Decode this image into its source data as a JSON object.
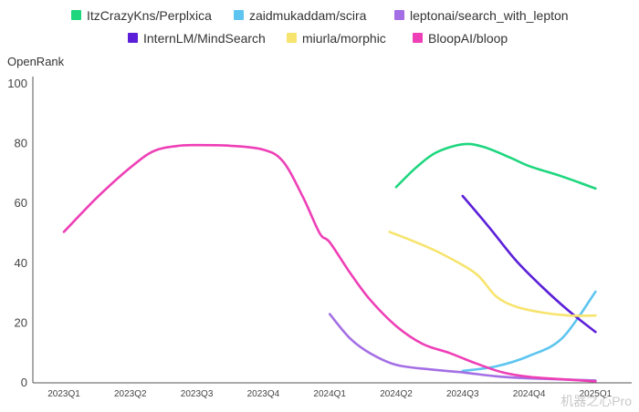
{
  "chart_data": {
    "type": "line",
    "ylabel": "OpenRank",
    "ylim": [
      0,
      100
    ],
    "yticks": [
      0,
      20,
      40,
      60,
      80,
      100
    ],
    "categories": [
      "2023Q1",
      "2023Q2",
      "2023Q3",
      "2023Q4",
      "2024Q1",
      "2024Q2",
      "2024Q3",
      "2024Q4",
      "2025Q1"
    ],
    "legend_position": "top",
    "grid": false,
    "series": [
      {
        "name": "ItzCrazyKns/Perplxica",
        "color": "#1ed67e",
        "points": [
          [
            5.0,
            65.5
          ],
          [
            5.3,
            72
          ],
          [
            5.6,
            77
          ],
          [
            6.0,
            79.8
          ],
          [
            6.3,
            79
          ],
          [
            6.7,
            75.5
          ],
          [
            7.0,
            72.5
          ],
          [
            7.5,
            69
          ],
          [
            8.0,
            65
          ]
        ]
      },
      {
        "name": "zaidmukaddam/scira",
        "color": "#5ec5f0",
        "points": [
          [
            6.0,
            4
          ],
          [
            6.5,
            5.5
          ],
          [
            7.0,
            9
          ],
          [
            7.5,
            15
          ],
          [
            8.0,
            30.5
          ]
        ]
      },
      {
        "name": "leptonai/search_with_lepton",
        "color": "#a46fe4",
        "points": [
          [
            4.0,
            23
          ],
          [
            4.3,
            15
          ],
          [
            4.6,
            10
          ],
          [
            5.0,
            6
          ],
          [
            5.5,
            4.5
          ],
          [
            6.0,
            3.5
          ],
          [
            6.5,
            2.2
          ],
          [
            7.0,
            1.5
          ],
          [
            8.0,
            0.8
          ]
        ]
      },
      {
        "name": "InternLM/MindSearch",
        "color": "#5b1fd9",
        "points": [
          [
            6.0,
            62.5
          ],
          [
            6.4,
            52
          ],
          [
            6.8,
            41
          ],
          [
            7.2,
            32
          ],
          [
            7.6,
            24
          ],
          [
            8.0,
            17
          ]
        ]
      },
      {
        "name": "miurla/morphic",
        "color": "#f7e46e",
        "points": [
          [
            4.9,
            50.5
          ],
          [
            5.3,
            47
          ],
          [
            5.7,
            43
          ],
          [
            6.2,
            36.5
          ],
          [
            6.5,
            29
          ],
          [
            6.8,
            25.5
          ],
          [
            7.2,
            23.5
          ],
          [
            7.6,
            22.5
          ],
          [
            8.0,
            22.5
          ]
        ]
      },
      {
        "name": "BloopAI/bloop",
        "color": "#ee3fb6",
        "points": [
          [
            0.0,
            50.5
          ],
          [
            0.5,
            62
          ],
          [
            1.0,
            72
          ],
          [
            1.35,
            77.5
          ],
          [
            1.7,
            79.2
          ],
          [
            2.0,
            79.5
          ],
          [
            2.5,
            79.3
          ],
          [
            3.0,
            78
          ],
          [
            3.3,
            74
          ],
          [
            3.6,
            62
          ],
          [
            3.85,
            50
          ],
          [
            4.0,
            47
          ],
          [
            4.3,
            37
          ],
          [
            4.6,
            28
          ],
          [
            5.0,
            19
          ],
          [
            5.4,
            13
          ],
          [
            5.8,
            10
          ],
          [
            6.2,
            6.5
          ],
          [
            6.6,
            3.5
          ],
          [
            7.0,
            2
          ],
          [
            7.5,
            1.2
          ],
          [
            8.0,
            0.5
          ]
        ]
      }
    ]
  },
  "watermark": "机器之心Pro"
}
